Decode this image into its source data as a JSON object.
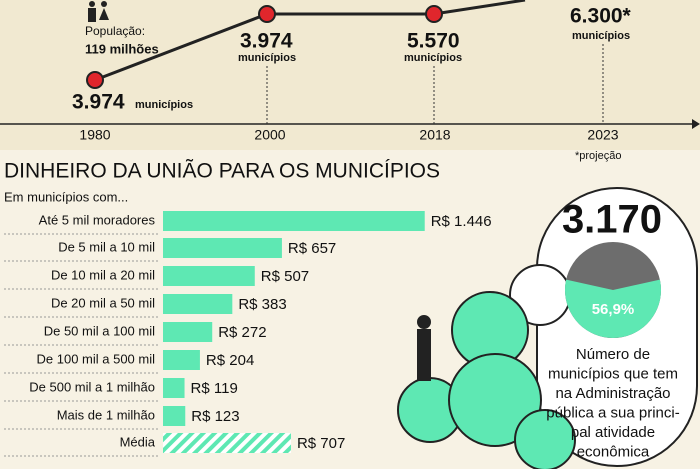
{
  "timeline": {
    "population_label": "População:",
    "population": "119 milhões",
    "points": [
      {
        "year": "1980",
        "count": "3.974",
        "unit": "municípios"
      },
      {
        "year": "2000",
        "count": "3.974",
        "unit": "municípios"
      },
      {
        "year": "2018",
        "count": "5.570",
        "unit": "municípios"
      },
      {
        "year": "2023",
        "count": "6.300*",
        "unit": "municípios"
      }
    ],
    "footnote": "*projeção"
  },
  "chart_data": [
    {
      "type": "bar",
      "orientation": "horizontal",
      "title": "DINHEIRO DA UNIÃO PARA OS MUNICÍPIOS",
      "subtitle": "Em municípios com...",
      "categories": [
        "Até 5 mil moradores",
        "De 5 mil a 10 mil",
        "De 10 mil a 20 mil",
        "De 20 mil a 50 mil",
        "De 50 mil a 100 mil",
        "De 100 mil a 500 mil",
        "De 500 mil a 1 milhão",
        "Mais de 1 milhão",
        "Média"
      ],
      "values": [
        1446,
        657,
        507,
        383,
        272,
        204,
        119,
        123,
        707
      ],
      "value_labels": [
        "R$ 1.446",
        "R$ 657",
        "R$ 507",
        "R$ 383",
        "R$ 272",
        "R$ 204",
        "R$ 119",
        "R$ 123",
        "R$ 707"
      ],
      "color": "#5ee8b3"
    },
    {
      "type": "pie",
      "title": "3.170",
      "values": [
        56.9
      ],
      "value_labels": [
        "56,9%"
      ],
      "color": "#5ee8b3",
      "rest_color": "#6d6d6d",
      "caption": [
        "Número de",
        "municípios que tem",
        "na Administração",
        "pública a sua princi-",
        "pal atividade",
        "econômica"
      ]
    }
  ]
}
